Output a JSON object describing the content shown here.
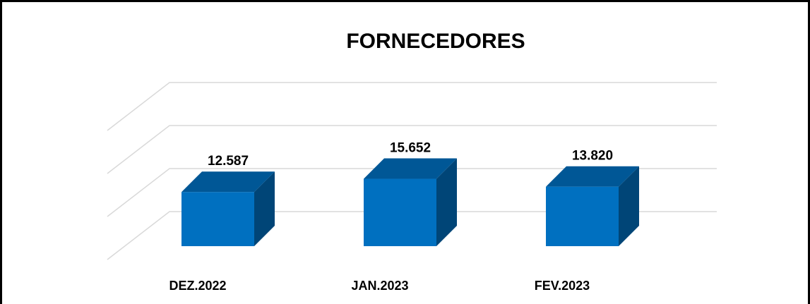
{
  "chart_data": {
    "type": "bar3d",
    "title": "FORNECEDORES",
    "categories": [
      "DEZ.2022",
      "JAN.2023",
      "FEV.2023"
    ],
    "values": [
      12587,
      15652,
      13820
    ],
    "value_labels": [
      "12.587",
      "15.652",
      "13.820"
    ],
    "color": "#0070c0",
    "ylim": [
      0,
      30000
    ],
    "yticks": [
      0,
      10000,
      20000,
      30000
    ],
    "grid": true
  }
}
